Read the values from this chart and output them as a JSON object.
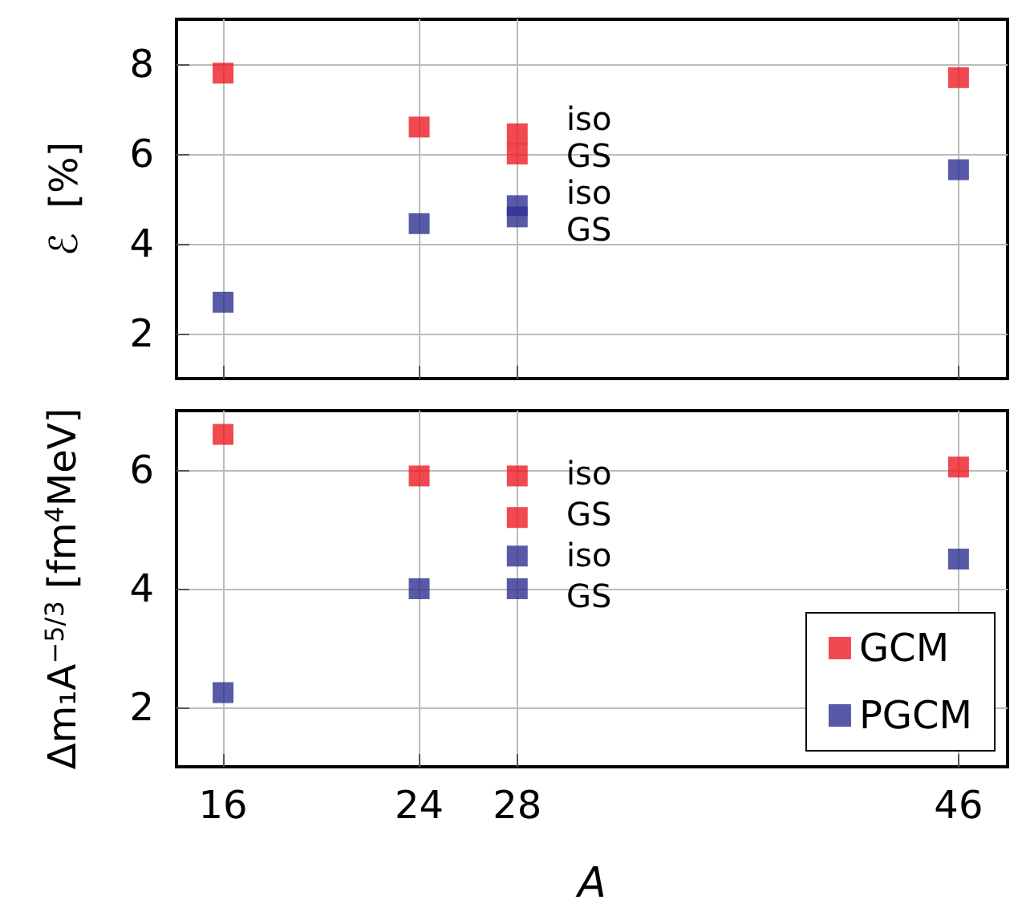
{
  "chart_data": [
    {
      "type": "scatter",
      "ylabel": "ℰ  [%]",
      "x": [
        16,
        24,
        28,
        28,
        46
      ],
      "series": [
        {
          "color": "#ed1c24",
          "values": [
            7.8,
            6.6,
            6.45,
            6.0,
            7.7
          ]
        },
        {
          "color": "#2e3192",
          "values": [
            2.7,
            4.45,
            4.85,
            4.6,
            5.65
          ]
        }
      ],
      "annotations": [
        "iso",
        "GS",
        "iso",
        "GS"
      ],
      "xticks": [
        16,
        24,
        28,
        46
      ],
      "ylim": [
        1,
        9
      ],
      "yticks": [
        2,
        4,
        6,
        8
      ],
      "xlim": [
        14.1,
        48
      ],
      "tick_labels": "y",
      "grid": true,
      "legend": false,
      "marker": "square"
    },
    {
      "type": "scatter",
      "xlabel": "A",
      "ylabel": "Δm₁A$^{−5/3}$ [fm$^{4}$MeV]",
      "x": [
        16,
        24,
        28,
        28,
        46
      ],
      "series": [
        {
          "name": "GCM",
          "color": "#ed1c24",
          "values": [
            6.6,
            5.9,
            5.9,
            5.2,
            6.05
          ]
        },
        {
          "name": "PGCM",
          "color": "#2e3192",
          "values": [
            2.25,
            4.0,
            4.55,
            4.0,
            4.5
          ]
        }
      ],
      "annotations": [
        "iso",
        "GS",
        "iso",
        "GS"
      ],
      "xlim": [
        14.1,
        48
      ],
      "xticks": [
        16,
        24,
        28,
        46
      ],
      "ylim": [
        1,
        7
      ],
      "yticks": [
        2,
        4,
        6
      ],
      "grid": true,
      "legend": "bottom right",
      "marker": "square"
    }
  ]
}
